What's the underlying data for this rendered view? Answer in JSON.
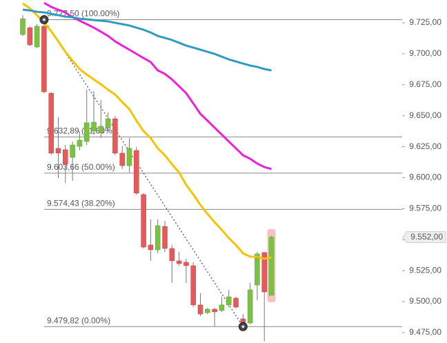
{
  "chart_data": {
    "type": "candlestick",
    "open": [
      9715.5,
      9721.1,
      9705.5,
      9722.2,
      9668.2,
      9623.7,
      9622.6,
      9616.4,
      9625.3,
      9629.2,
      9637.6,
      9636.5,
      9640.4,
      9647.6,
      9619.8,
      9609.7,
      9622,
      9586.4,
      9545.7,
      9541.8,
      9560.7,
      9542.9,
      9532.9,
      9531.8,
      9529,
      9497.3,
      9491.1,
      9493.9,
      9492.8,
      9497.3,
      9502.8,
      9486.1,
      9482.8,
      9513.4,
      9539.6,
      9505.1
    ],
    "high": [
      9731.1,
      9722.2,
      9724,
      9727.5,
      9669.3,
      9648.7,
      9626.4,
      9629.2,
      9637.6,
      9671,
      9669.9,
      9662.6,
      9652.6,
      9649.8,
      9625.3,
      9632,
      9624.8,
      9587.5,
      9566.3,
      9566.3,
      9565.2,
      9545.7,
      9540.1,
      9534.6,
      9531.8,
      9506.7,
      9495,
      9495,
      9503.9,
      9509.5,
      9503.9,
      9490,
      9515.1,
      9540.1,
      9540.1,
      9552.9
    ],
    "low": [
      9714.4,
      9706.1,
      9704.5,
      9668.2,
      9618.5,
      9599.7,
      9595.8,
      9597.5,
      9622,
      9626.4,
      9634.8,
      9632,
      9637.6,
      9618.1,
      9607,
      9604.2,
      9586.4,
      9542.9,
      9532.9,
      9539,
      9540.1,
      9515.1,
      9529,
      9515.1,
      9495.6,
      9488.4,
      9490,
      9480,
      9491.7,
      9495.6,
      9494.5,
      9479.82,
      9481.7,
      9501.2,
      9467.8,
      9505.1
    ],
    "close": [
      9728.3,
      9707.2,
      9722.2,
      9669.3,
      9619.8,
      9619.8,
      9610.9,
      9626.4,
      9630.3,
      9644.3,
      9644.8,
      9641.5,
      9647.6,
      9619.8,
      9609.7,
      9623.7,
      9587.5,
      9544,
      9541.8,
      9561.3,
      9542.9,
      9532.9,
      9530.7,
      9529,
      9497.3,
      9490,
      9493.9,
      9491.7,
      9497.3,
      9503.9,
      9495.6,
      9480,
      9509.5,
      9538.5,
      9507.8,
      9552
    ],
    "up_color": "#7cc242",
    "down_color": "#e55a5a",
    "lines": [
      {
        "color": "#f5c400",
        "values": [
          9740.6,
          9736.7,
          9731.1,
          9725,
          9718.3,
          9710,
          9701.6,
          9694.4,
          9687.7,
          9683.2,
          9679.3,
          9675.4,
          9671,
          9667.1,
          9661,
          9655.4,
          9646,
          9637.6,
          9632,
          9623.7,
          9618.1,
          9610.9,
          9604.2,
          9594.2,
          9586.4,
          9578,
          9570.8,
          9564.1,
          9558,
          9551.3,
          9545.7,
          9539,
          9536.3,
          9536.3,
          9534.6,
          9535.7
        ]
      },
      {
        "color": "#ee1fd6",
        "values": [
          null,
          null,
          null,
          9741.1,
          9737.8,
          9735.6,
          9733.4,
          9729.5,
          9726.7,
          9723.9,
          9721.1,
          9717.8,
          9714.4,
          9710,
          9706.6,
          9703.3,
          9699.9,
          9696.6,
          9693.3,
          9686.6,
          9683.8,
          9679.3,
          9673.8,
          9668.2,
          9659.9,
          9651.5,
          9646,
          9640.4,
          9634.8,
          9629.2,
          9623.7,
          9618.1,
          9615.3,
          9611.4,
          9608.6,
          9607
        ]
      },
      {
        "color": "#2e9bc1",
        "values": [
          9735.6,
          9735,
          9733.9,
          9733.4,
          9732.2,
          9731.1,
          9730,
          9729.5,
          9728.3,
          9727.8,
          9727.2,
          9726.7,
          9726.1,
          9725,
          9723.9,
          9722.8,
          9721.1,
          9719.4,
          9717.2,
          9714.4,
          9712.8,
          9711.1,
          9708.9,
          9706.6,
          9705,
          9703.3,
          9701.6,
          9699.9,
          9697.7,
          9695.5,
          9693.8,
          9692.1,
          9690.5,
          9689.4,
          9687.7,
          9686.6
        ]
      }
    ],
    "fib_levels": [
      {
        "value": 9727.5,
        "label": "9.727,50 (100.00%)"
      },
      {
        "value": 9632.89,
        "label": "9.632,89 (61.80%)"
      },
      {
        "value": 9603.66,
        "label": "9.603,66 (50.00%)"
      },
      {
        "value": 9574.43,
        "label": "9.574,43 (38.20%)"
      },
      {
        "value": 9479.82,
        "label": "9.479,82 (0.00%)"
      }
    ],
    "anchors": [
      {
        "index": 3,
        "value": 9727.5
      },
      {
        "index": 31,
        "value": 9479.82
      }
    ],
    "last_price": {
      "value": 9552,
      "label": "9.552,00"
    },
    "ylim": [
      9466.6,
      9743.4
    ],
    "yticks": [
      {
        "value": 9475,
        "label": "9.475,00"
      },
      {
        "value": 9500,
        "label": "9.500,00"
      },
      {
        "value": 9525,
        "label": "9.525,00"
      },
      {
        "value": 9550,
        "label": "9.550,00"
      },
      {
        "value": 9575,
        "label": "9.575,00"
      },
      {
        "value": 9600,
        "label": "9.600,00"
      },
      {
        "value": 9625,
        "label": "9.625,00"
      },
      {
        "value": 9650,
        "label": "9.650,00"
      },
      {
        "value": 9675,
        "label": "9.675,00"
      },
      {
        "value": 9700,
        "label": "9.700,00"
      },
      {
        "value": 9725,
        "label": "9.725,00"
      }
    ]
  }
}
